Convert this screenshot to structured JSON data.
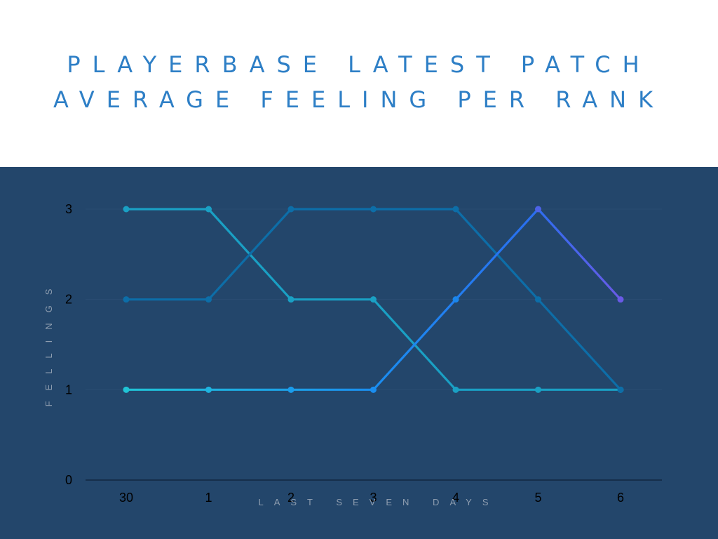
{
  "header": {
    "title_line1": "PLAYERBASE LATEST PATCH",
    "title_line2": "AVERAGE FEELING PER RANK"
  },
  "colors": {
    "background_panel": "#23466b",
    "title": "#2e7fc6",
    "series_a": "#1aa0c4",
    "series_b": "#0d6ea8",
    "series_c_start": "#20c4d6",
    "series_c_mid": "#1a86ec",
    "series_c_end": "#6a5ae6"
  },
  "chart_data": {
    "type": "line",
    "categories": [
      "30",
      "1",
      "2",
      "3",
      "4",
      "5",
      "6"
    ],
    "xlabel": "LAST SEVEN DAYS",
    "ylabel": "FELLINGS",
    "ylim": [
      0,
      3
    ],
    "yticks": [
      "0",
      "1",
      "2",
      "3"
    ],
    "grid": true,
    "series": [
      {
        "values": [
          3,
          3,
          2,
          2,
          1,
          1,
          1
        ]
      },
      {
        "values": [
          2,
          2,
          3,
          3,
          3,
          2,
          1
        ]
      },
      {
        "values": [
          1,
          1,
          1,
          1,
          2,
          3,
          2
        ]
      }
    ]
  }
}
